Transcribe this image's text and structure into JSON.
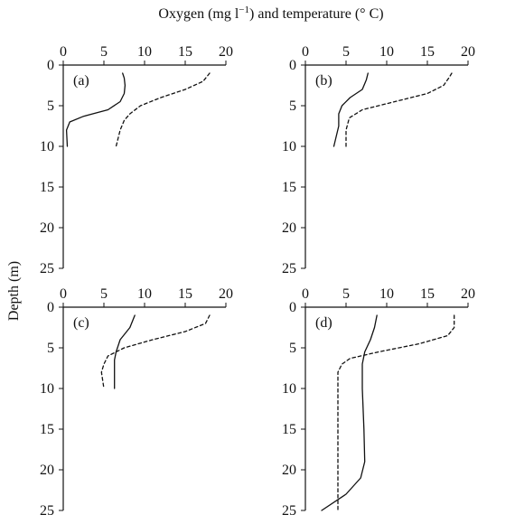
{
  "chart_data": {
    "type": "line",
    "title": "",
    "xlabel": "Oxygen (mg l",
    "xlabel_sup": "−1",
    "xlabel_tail": ") and temperature (° C)",
    "ylabel": "Depth (m)",
    "xlim": [
      0,
      20
    ],
    "ylim": [
      0,
      25
    ],
    "xticks": [
      0,
      5,
      10,
      15,
      20
    ],
    "yticks": [
      0,
      5,
      10,
      15,
      20,
      25
    ],
    "axis_position": "top-left",
    "grid": false,
    "panels": [
      {
        "label": "(a)",
        "series": [
          {
            "style": "solid",
            "points": [
              [
                7.3,
                1
              ],
              [
                7.5,
                1.6
              ],
              [
                7.6,
                2.5
              ],
              [
                7.5,
                3.5
              ],
              [
                7,
                4.5
              ],
              [
                5.5,
                5.5
              ],
              [
                2.5,
                6.3
              ],
              [
                0.8,
                7
              ],
              [
                0.4,
                8
              ],
              [
                0.5,
                10
              ]
            ]
          },
          {
            "style": "dashed",
            "points": [
              [
                18,
                1
              ],
              [
                17.2,
                2
              ],
              [
                15,
                3
              ],
              [
                12,
                4
              ],
              [
                9.5,
                5
              ],
              [
                8.2,
                6
              ],
              [
                7.5,
                6.8
              ],
              [
                7,
                8
              ],
              [
                6.5,
                10
              ]
            ]
          }
        ]
      },
      {
        "label": "(b)",
        "series": [
          {
            "style": "solid",
            "points": [
              [
                7.7,
                1
              ],
              [
                7.5,
                1.8
              ],
              [
                7,
                3
              ],
              [
                5.5,
                4
              ],
              [
                4.5,
                5
              ],
              [
                4.1,
                6
              ],
              [
                4.1,
                7.5
              ],
              [
                3.5,
                10
              ]
            ]
          },
          {
            "style": "dashed",
            "points": [
              [
                18,
                1
              ],
              [
                17.7,
                1.5
              ],
              [
                17,
                2.5
              ],
              [
                15,
                3.5
              ],
              [
                11,
                4.5
              ],
              [
                7,
                5.5
              ],
              [
                5.4,
                6.5
              ],
              [
                5,
                8
              ],
              [
                5,
                10
              ]
            ]
          }
        ]
      },
      {
        "label": "(c)",
        "series": [
          {
            "style": "solid",
            "points": [
              [
                8.8,
                1
              ],
              [
                8.2,
                2.5
              ],
              [
                7,
                4
              ],
              [
                6.5,
                5.5
              ],
              [
                6.3,
                6.5
              ],
              [
                6.3,
                10
              ]
            ]
          },
          {
            "style": "dashed",
            "points": [
              [
                18,
                1
              ],
              [
                17.5,
                2
              ],
              [
                15,
                3
              ],
              [
                11,
                4
              ],
              [
                7.5,
                5
              ],
              [
                5.5,
                6
              ],
              [
                5,
                7
              ],
              [
                4.7,
                8
              ],
              [
                5,
                10
              ]
            ]
          }
        ]
      },
      {
        "label": "(d)",
        "series": [
          {
            "style": "solid",
            "points": [
              [
                8.8,
                1
              ],
              [
                8.5,
                2.5
              ],
              [
                8,
                4
              ],
              [
                7.3,
                5.5
              ],
              [
                7,
                7
              ],
              [
                7,
                10
              ],
              [
                7.2,
                15
              ],
              [
                7.3,
                19
              ],
              [
                6.8,
                21
              ],
              [
                5,
                23
              ],
              [
                2,
                25
              ]
            ]
          },
          {
            "style": "dashed",
            "points": [
              [
                18.3,
                1
              ],
              [
                18.3,
                2.5
              ],
              [
                17.5,
                3.5
              ],
              [
                14,
                4.5
              ],
              [
                9,
                5.5
              ],
              [
                5.5,
                6.3
              ],
              [
                4.5,
                7
              ],
              [
                4,
                8
              ],
              [
                4,
                12
              ],
              [
                4,
                20
              ],
              [
                4,
                25
              ]
            ]
          }
        ]
      }
    ]
  }
}
